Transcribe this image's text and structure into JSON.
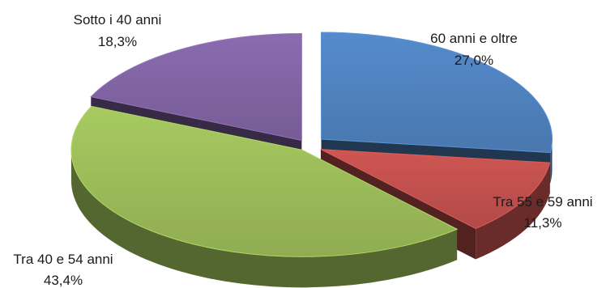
{
  "chart_data": {
    "type": "pie",
    "style": "3d-exploded",
    "legend": "none",
    "slices": [
      {
        "label": "60 anni e oltre",
        "value_label": "27,0%",
        "value": 27.0,
        "color": "#4F81BD"
      },
      {
        "label": "Tra 55 e 59 anni",
        "value_label": "11,3%",
        "value": 11.3,
        "color": "#C0504D"
      },
      {
        "label": "Tra 40 e 54 anni",
        "value_label": "43,4%",
        "value": 43.4,
        "color": "#9BBB59"
      },
      {
        "label": "Sotto i 40 anni",
        "value_label": "18,3%",
        "value": 18.3,
        "color": "#8064A2"
      }
    ]
  }
}
